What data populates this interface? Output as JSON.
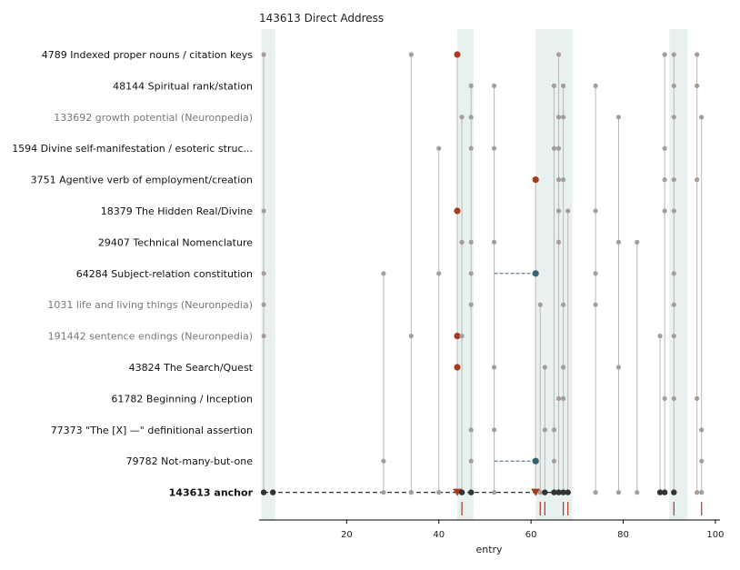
{
  "chart_data": {
    "type": "scatter",
    "title": "143613  Direct Address",
    "xlabel": "entry",
    "ylabel": "",
    "xlim": [
      1,
      101
    ],
    "xticks": [
      20,
      40,
      60,
      80,
      100
    ],
    "bands": [
      [
        1.5,
        4.5
      ],
      [
        44.0,
        47.5
      ],
      [
        61.0,
        69.0
      ],
      [
        90.0,
        94.0
      ]
    ],
    "rows": [
      {
        "label": "4789  Indexed proper nouns / citation keys",
        "style": "normal",
        "points": [
          2,
          34,
          44,
          66,
          89,
          91,
          96
        ],
        "highlights": [
          44
        ],
        "links": []
      },
      {
        "label": "48144  Spiritual rank/station",
        "style": "normal",
        "points": [
          47,
          52,
          65,
          67,
          74,
          91,
          96
        ],
        "highlights": [],
        "links": []
      },
      {
        "label": "133692  growth potential (Neuronpedia)",
        "style": "muted",
        "points": [
          45,
          47,
          66,
          67,
          79,
          91,
          97
        ],
        "highlights": [],
        "links": []
      },
      {
        "label": "1594  Divine self-manifestation / esoteric struc...",
        "style": "normal",
        "points": [
          40,
          47,
          52,
          65,
          66,
          89
        ],
        "highlights": [],
        "links": []
      },
      {
        "label": "3751  Agentive verb of employment/creation",
        "style": "normal",
        "points": [
          61,
          66,
          67,
          89,
          91,
          96
        ],
        "highlights": [
          61
        ],
        "links": []
      },
      {
        "label": "18379  The Hidden Real/Divine",
        "style": "normal",
        "points": [
          2,
          44,
          66,
          68,
          74,
          89,
          91
        ],
        "highlights": [
          44
        ],
        "links": []
      },
      {
        "label": "29407  Technical Nomenclature",
        "style": "normal",
        "points": [
          45,
          47,
          52,
          66,
          79,
          83
        ],
        "highlights": [],
        "links": []
      },
      {
        "label": "64284  Subject-relation constitution",
        "style": "normal",
        "points": [
          2,
          28,
          40,
          47,
          61,
          74,
          91
        ],
        "highlights": [],
        "links": [
          [
            52,
            61
          ]
        ]
      },
      {
        "label": "1031  life and living things (Neuronpedia)",
        "style": "muted",
        "points": [
          2,
          47,
          62,
          67,
          74,
          91
        ],
        "highlights": [],
        "links": []
      },
      {
        "label": "191442  sentence endings (Neuronpedia)",
        "style": "muted",
        "points": [
          2,
          34,
          44,
          45,
          88,
          91
        ],
        "highlights": [
          44
        ],
        "links": []
      },
      {
        "label": "43824  The Search/Quest",
        "style": "normal",
        "points": [
          44,
          52,
          63,
          67,
          79
        ],
        "highlights": [
          44
        ],
        "links": []
      },
      {
        "label": "61782  Beginning / Inception",
        "style": "normal",
        "points": [
          66,
          67,
          89,
          91,
          96
        ],
        "highlights": [],
        "links": []
      },
      {
        "label": "77373  \"The [X] —\" definitional assertion",
        "style": "normal",
        "points": [
          47,
          52,
          63,
          65,
          97
        ],
        "highlights": [],
        "links": []
      },
      {
        "label": "79782  Not-many-but-one",
        "style": "normal",
        "points": [
          28,
          47,
          61,
          65,
          97
        ],
        "highlights": [],
        "links": [
          [
            52,
            61
          ]
        ]
      },
      {
        "label": "143613  anchor",
        "style": "anchor",
        "points": [
          2,
          4,
          28,
          34,
          40,
          44,
          45,
          47,
          52,
          61,
          62,
          63,
          65,
          66,
          67,
          68,
          74,
          79,
          83,
          88,
          89,
          91,
          96,
          97
        ],
        "dark": [
          2,
          4,
          45,
          47,
          61,
          63,
          65,
          66,
          67,
          68,
          88,
          89,
          91
        ],
        "highlights": [
          44,
          61
        ],
        "links": []
      }
    ],
    "rug": [
      45,
      62,
      63,
      67,
      68,
      91,
      97
    ]
  },
  "colors": {
    "band": "#e8f0f0",
    "point": "#a49e98",
    "dark_point": "#333333",
    "highlight": "#a83a1e",
    "link": "#2e6570",
    "stem": "#bdb8b3",
    "rug": "#a83a1e",
    "muted_text": "#777777",
    "text": "#111111"
  }
}
